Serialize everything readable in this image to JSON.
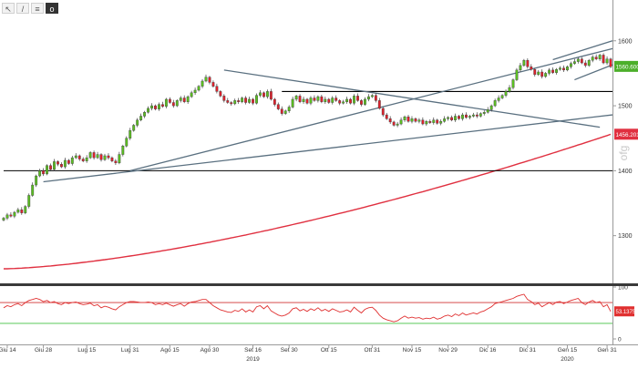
{
  "toolbar": {
    "buttons": [
      {
        "icon": "cursor-icon",
        "glyph": "↖"
      },
      {
        "icon": "draw-line-icon",
        "glyph": "/"
      },
      {
        "icon": "indicator-icon",
        "glyph": "≡"
      },
      {
        "icon": "settings-icon",
        "glyph": "o"
      }
    ]
  },
  "chart_data": {
    "type": "candlestick",
    "watermark": "ofg",
    "colors": {
      "up": "#5bbf21",
      "down": "#e0202b",
      "ma": "#e03040",
      "trendline": "#5a7080",
      "level": "#000000",
      "rsi": "#e03030",
      "rsi_upper": "#d03030",
      "rsi_lower": "#40c040"
    },
    "x_ticks": [
      {
        "i": 1,
        "label": "Giu 14"
      },
      {
        "i": 11,
        "label": "Giu 28"
      },
      {
        "i": 23,
        "label": "Lug 15"
      },
      {
        "i": 35,
        "label": "Lug 31"
      },
      {
        "i": 46,
        "label": "Ago 15"
      },
      {
        "i": 57,
        "label": "Ago 30"
      },
      {
        "i": 69,
        "label": "Set 16"
      },
      {
        "i": 79,
        "label": "Set 30"
      },
      {
        "i": 90,
        "label": "Ott 15"
      },
      {
        "i": 102,
        "label": "Ott 31"
      },
      {
        "i": 113,
        "label": "Nov 15"
      },
      {
        "i": 123,
        "label": "Nov 29"
      },
      {
        "i": 134,
        "label": "Dic 16"
      },
      {
        "i": 145,
        "label": "Dic 31"
      },
      {
        "i": 156,
        "label": "Gen 15"
      },
      {
        "i": 167,
        "label": "Gen 31"
      }
    ],
    "year_labels": [
      {
        "i": 69,
        "label": "2019"
      },
      {
        "i": 156,
        "label": "2020"
      }
    ],
    "y_ticks": [
      1300,
      1400,
      1500,
      1600
    ],
    "ylim": [
      1228,
      1660
    ],
    "price_box": {
      "label": "1560.6001",
      "value": 1560.6
    },
    "ma_box": {
      "label": "1456.2012",
      "value": 1456.2
    },
    "closes": [
      1327,
      1332,
      1330,
      1336,
      1340,
      1335,
      1345,
      1362,
      1378,
      1392,
      1400,
      1395,
      1408,
      1402,
      1414,
      1410,
      1406,
      1416,
      1411,
      1420,
      1423,
      1418,
      1415,
      1420,
      1428,
      1420,
      1425,
      1417,
      1423,
      1420,
      1415,
      1412,
      1425,
      1438,
      1450,
      1462,
      1470,
      1478,
      1484,
      1490,
      1496,
      1500,
      1495,
      1502,
      1499,
      1510,
      1505,
      1500,
      1508,
      1512,
      1506,
      1514,
      1520,
      1524,
      1530,
      1538,
      1544,
      1536,
      1530,
      1522,
      1515,
      1508,
      1505,
      1503,
      1508,
      1506,
      1512,
      1505,
      1510,
      1504,
      1516,
      1520,
      1514,
      1522,
      1510,
      1502,
      1495,
      1488,
      1492,
      1498,
      1510,
      1515,
      1506,
      1510,
      1504,
      1512,
      1508,
      1514,
      1506,
      1510,
      1505,
      1512,
      1508,
      1504,
      1506,
      1510,
      1504,
      1515,
      1508,
      1502,
      1510,
      1514,
      1516,
      1508,
      1496,
      1486,
      1480,
      1475,
      1470,
      1472,
      1478,
      1483,
      1476,
      1480,
      1476,
      1478,
      1472,
      1476,
      1474,
      1478,
      1473,
      1476,
      1480,
      1482,
      1478,
      1484,
      1480,
      1486,
      1482,
      1484,
      1486,
      1484,
      1488,
      1490,
      1494,
      1500,
      1508,
      1512,
      1516,
      1522,
      1528,
      1540,
      1555,
      1562,
      1570,
      1560,
      1556,
      1548,
      1552,
      1545,
      1550,
      1555,
      1551,
      1556,
      1558,
      1555,
      1560,
      1565,
      1568,
      1572,
      1566,
      1562,
      1570,
      1575,
      1572,
      1578,
      1566,
      1572,
      1560
    ],
    "ma200": {
      "start": 1249,
      "end": 1456,
      "curve": 1.5
    },
    "horizontal_levels": [
      {
        "y": 1522,
        "i0": 77,
        "i1": 180
      },
      {
        "y": 1400,
        "i0": 0,
        "i1": 180
      }
    ],
    "trendlines": [
      {
        "i0": 11,
        "y0": 1383,
        "i1": 180,
        "y1": 1486
      },
      {
        "i0": 35,
        "y0": 1400,
        "i1": 180,
        "y1": 1588
      },
      {
        "i0": 61,
        "y0": 1555,
        "i1": 165,
        "y1": 1467
      },
      {
        "i0": 152,
        "y0": 1571,
        "i1": 177,
        "y1": 1600
      },
      {
        "i0": 158,
        "y0": 1540,
        "i1": 175,
        "y1": 1563
      }
    ],
    "rsi": {
      "ylim": [
        0,
        100
      ],
      "y_ticks": [
        100,
        0
      ],
      "upper_line": 70,
      "lower_line": 30,
      "last_label": "53.1375",
      "last_value": 53.1,
      "values": [
        60,
        64,
        62,
        66,
        68,
        64,
        70,
        74,
        76,
        78,
        76,
        72,
        74,
        70,
        72,
        68,
        66,
        70,
        68,
        70,
        71,
        68,
        66,
        67,
        69,
        64,
        66,
        60,
        63,
        61,
        58,
        56,
        62,
        66,
        70,
        72,
        72,
        71,
        70,
        70,
        71,
        70,
        66,
        68,
        66,
        69,
        66,
        63,
        66,
        68,
        63,
        68,
        71,
        72,
        74,
        76,
        76,
        70,
        64,
        60,
        56,
        54,
        52,
        51,
        55,
        53,
        58,
        52,
        56,
        52,
        62,
        64,
        58,
        64,
        54,
        50,
        46,
        44,
        46,
        50,
        58,
        60,
        54,
        57,
        53,
        58,
        55,
        60,
        54,
        57,
        53,
        58,
        55,
        52,
        53,
        56,
        52,
        61,
        55,
        50,
        57,
        60,
        61,
        55,
        46,
        40,
        37,
        35,
        33,
        35,
        40,
        44,
        40,
        42,
        40,
        41,
        38,
        40,
        39,
        42,
        38,
        40,
        44,
        46,
        43,
        48,
        45,
        50,
        46,
        48,
        50,
        48,
        52,
        54,
        58,
        62,
        68,
        70,
        72,
        74,
        76,
        78,
        82,
        84,
        86,
        76,
        72,
        66,
        69,
        62,
        66,
        70,
        66,
        71,
        72,
        68,
        71,
        74,
        76,
        78,
        70,
        66,
        71,
        74,
        70,
        72,
        62,
        66,
        53
      ]
    }
  }
}
